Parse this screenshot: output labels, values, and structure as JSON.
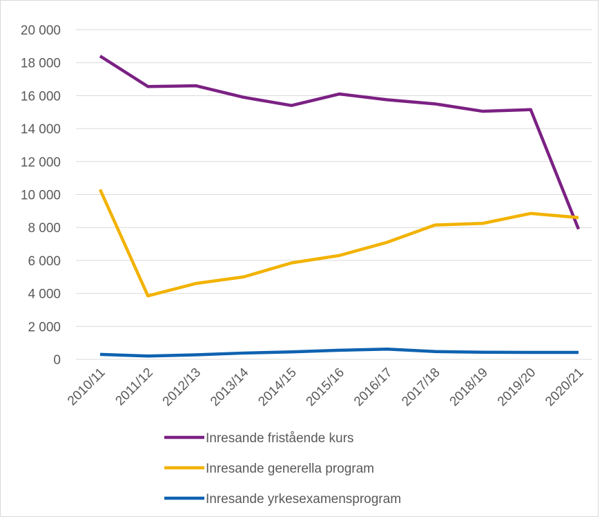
{
  "chart_data": {
    "type": "line",
    "categories": [
      "2010/11",
      "2011/12",
      "2012/13",
      "2013/14",
      "2014/15",
      "2015/16",
      "2016/17",
      "2017/18",
      "2018/19",
      "2019/20",
      "2020/21"
    ],
    "series": [
      {
        "name": "Inresande fristående kurs",
        "color": "#7b2183",
        "values": [
          18400,
          16550,
          16600,
          15900,
          15400,
          16100,
          15750,
          15500,
          15050,
          15150,
          7900
        ]
      },
      {
        "name": "Inresande generella program",
        "color": "#f2b200",
        "values": [
          10300,
          3850,
          4600,
          5000,
          5850,
          6300,
          7100,
          8150,
          8250,
          8850,
          8600
        ]
      },
      {
        "name": "Inresande yrkesexamensprogram",
        "color": "#0f62b0",
        "values": [
          300,
          200,
          270,
          380,
          450,
          550,
          620,
          470,
          430,
          420,
          420
        ]
      }
    ],
    "ylim": [
      0,
      20000
    ],
    "yticks": [
      0,
      {
        "value": 2000,
        "label": "2 000"
      },
      {
        "value": 4000,
        "label": "4 000"
      },
      {
        "value": 6000,
        "label": "6 000"
      },
      {
        "value": 8000,
        "label": "8 000"
      },
      {
        "value": 10000,
        "label": "10 000"
      },
      {
        "value": 12000,
        "label": "12 000"
      },
      {
        "value": 14000,
        "label": "14 000"
      },
      {
        "value": 16000,
        "label": "16 000"
      },
      {
        "value": 18000,
        "label": "18 000"
      },
      {
        "value": 20000,
        "label": "20 000"
      }
    ],
    "grid": true,
    "legend": "bottom"
  }
}
